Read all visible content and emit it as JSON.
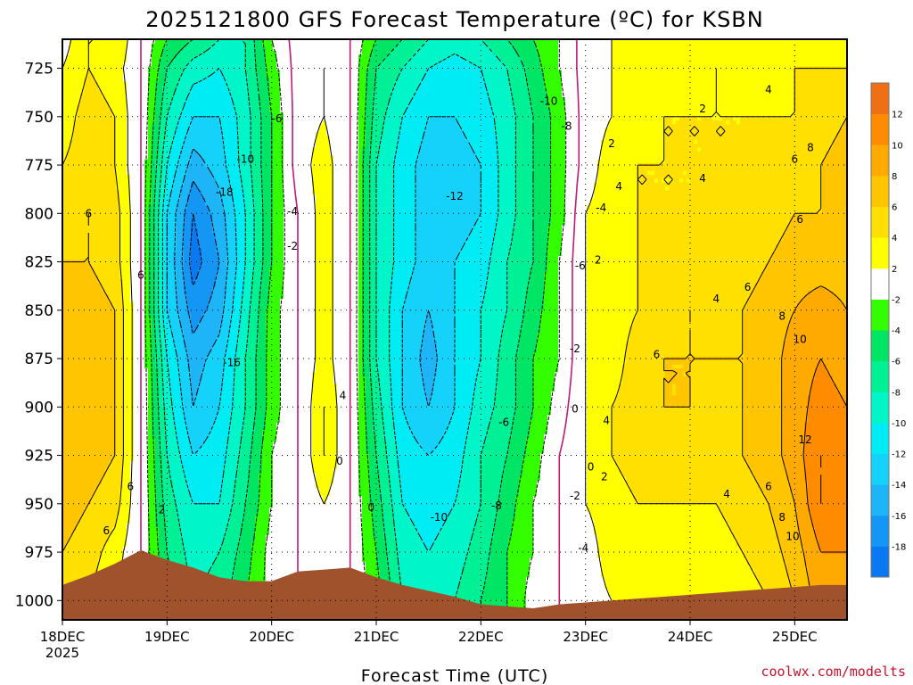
{
  "chart_data": {
    "type": "heatmap",
    "title": "2025121800 GFS Forecast Temperature (ºC) for KSBN",
    "xlabel": "Forecast Time (UTC)",
    "ylabel": "",
    "credit": "coolwx.com/modelts",
    "x_tick_labels": [
      "18DEC",
      "19DEC",
      "20DEC",
      "21DEC",
      "22DEC",
      "23DEC",
      "24DEC",
      "25DEC"
    ],
    "x_year_label": "2025",
    "x_range_days": [
      0,
      7.5
    ],
    "y_axis_unit": "hPa",
    "y_range": [
      710,
      1010
    ],
    "y_ticks": [
      725,
      750,
      775,
      800,
      825,
      850,
      875,
      900,
      925,
      950,
      975,
      1000
    ],
    "colorbar": {
      "boundaries": [
        -20,
        -18,
        -16,
        -14,
        -12,
        -10,
        -8,
        -6,
        -4,
        -2,
        2,
        4,
        6,
        8,
        10,
        12,
        14
      ],
      "labels": [
        "-18",
        "-16",
        "-14",
        "-12",
        "-10",
        "-8",
        "-6",
        "-4",
        "-2",
        "2",
        "4",
        "6",
        "8",
        "10",
        "12"
      ],
      "colors": [
        "#0a78f0",
        "#1496f5",
        "#1eb4f8",
        "#14d2fa",
        "#00ecf5",
        "#00f5c8",
        "#00f096",
        "#00e664",
        "#33ff00",
        "#ffffff",
        "#ffff00",
        "#ffe000",
        "#ffc600",
        "#ffaa00",
        "#ff8c00",
        "#f06e14"
      ]
    },
    "grid": true,
    "x_days": [
      0,
      0.25,
      0.5,
      0.75,
      1.0,
      1.25,
      1.5,
      1.75,
      2.0,
      2.25,
      2.5,
      2.75,
      3.0,
      3.25,
      3.5,
      3.75,
      4.0,
      4.25,
      4.5,
      4.75,
      5.0,
      5.25,
      5.5,
      5.75,
      6.0,
      6.25,
      6.5,
      6.75,
      7.0,
      7.25,
      7.5
    ],
    "pressure_levels": [
      710,
      725,
      750,
      775,
      800,
      825,
      850,
      875,
      900,
      925,
      950,
      975,
      1000,
      1010
    ],
    "surface_pressure": [
      992,
      987,
      981,
      974,
      979,
      983,
      988,
      990,
      990,
      985,
      984,
      983,
      988,
      992,
      995,
      998,
      1002,
      1003,
      1004,
      1002,
      1001,
      1000,
      999,
      998,
      997,
      996,
      995,
      994,
      993,
      992,
      992
    ],
    "temperature": [
      [
        1,
        4,
        4,
        0,
        -4,
        -6,
        -8,
        -8,
        -2,
        1,
        1,
        0,
        -4,
        -6,
        -8,
        -9,
        -8,
        -6,
        -4,
        -2,
        1,
        2,
        3,
        3,
        3,
        3,
        3,
        3,
        3,
        3,
        3
      ],
      [
        2,
        4,
        3,
        0,
        -6,
        -9,
        -10,
        -8,
        -3,
        1,
        2,
        0,
        -6,
        -8,
        -10,
        -11,
        -10,
        -8,
        -5,
        -2,
        1,
        2,
        3,
        3,
        3,
        4,
        3,
        3,
        4,
        4,
        4
      ],
      [
        3,
        5,
        4,
        0,
        -8,
        -12,
        -12,
        -9,
        -4,
        1,
        2,
        0,
        -7,
        -10,
        -12,
        -12,
        -11,
        -9,
        -6,
        -3,
        1,
        2,
        3,
        4,
        4,
        4,
        4,
        4,
        4,
        5,
        6
      ],
      [
        4,
        5,
        4,
        0,
        -10,
        -15,
        -13,
        -9,
        -4,
        1,
        3,
        0,
        -8,
        -11,
        -13,
        -13,
        -12,
        -9,
        -6,
        -3,
        1,
        3,
        4,
        4,
        4,
        4,
        4,
        5,
        5,
        6,
        7
      ],
      [
        5,
        6,
        5,
        0,
        -12,
        -18,
        -15,
        -10,
        -4,
        0,
        3,
        0,
        -8,
        -11,
        -13,
        -13,
        -12,
        -9,
        -6,
        -3,
        2,
        3,
        4,
        4,
        4,
        5,
        5,
        5,
        6,
        6,
        7
      ],
      [
        6,
        6,
        5,
        0,
        -12,
        -19,
        -16,
        -10,
        -4,
        0,
        3,
        0,
        -8,
        -11,
        -13,
        -12,
        -11,
        -8,
        -6,
        -2,
        2,
        3,
        4,
        5,
        5,
        5,
        5,
        6,
        7,
        7,
        7
      ],
      [
        6,
        7,
        6,
        0,
        -12,
        -17,
        -15,
        -9,
        -3,
        0,
        3,
        0,
        -8,
        -12,
        -14,
        -12,
        -10,
        -8,
        -5,
        -2,
        2,
        3,
        4,
        5,
        6,
        5,
        6,
        7,
        8,
        9,
        8
      ],
      [
        7,
        7,
        6,
        0,
        -10,
        -15,
        -13,
        -8,
        -3,
        0,
        3,
        0,
        -8,
        -12,
        -15,
        -12,
        -10,
        -7,
        -4,
        -2,
        2,
        3,
        5,
        6,
        6,
        6,
        6,
        7,
        9,
        10,
        9
      ],
      [
        7,
        7,
        6,
        0,
        -9,
        -14,
        -12,
        -8,
        -3,
        0,
        4,
        0,
        -7,
        -12,
        -14,
        -12,
        -9,
        -7,
        -4,
        -1,
        2,
        4,
        5,
        6,
        6,
        5,
        6,
        7,
        9,
        11,
        10
      ],
      [
        7,
        7,
        6,
        0,
        -8,
        -12,
        -11,
        -7,
        -2,
        0,
        4,
        0,
        -6,
        -11,
        -12,
        -11,
        -8,
        -6,
        -3,
        0,
        2,
        4,
        5,
        5,
        5,
        5,
        6,
        7,
        9,
        12,
        11
      ],
      [
        7,
        6,
        5,
        0,
        -7,
        -10,
        -10,
        -6,
        -2,
        0,
        2,
        0,
        -5,
        -10,
        -11,
        -10,
        -8,
        -5,
        -2,
        0,
        2,
        3,
        4,
        4,
        4,
        4,
        5,
        6,
        8,
        12,
        11
      ],
      [
        6,
        5,
        3,
        0,
        -6,
        -9,
        -8,
        -5,
        -1,
        0,
        1,
        0,
        -4,
        -9,
        -10,
        -9,
        -7,
        -4,
        -2,
        0,
        1,
        3,
        3,
        3,
        3,
        3,
        4,
        5,
        7,
        10,
        10
      ],
      [
        5,
        4,
        2,
        0,
        -5,
        -8,
        -7,
        -4,
        -1,
        0,
        1,
        0,
        -3,
        -8,
        -9,
        -8,
        -6,
        -4,
        -1,
        0,
        1,
        2,
        3,
        3,
        3,
        3,
        3,
        4,
        6,
        9,
        9
      ],
      [
        4,
        3,
        2,
        0,
        -5,
        -7,
        -7,
        -4,
        -1,
        0,
        1,
        0,
        -3,
        -7,
        -8,
        -8,
        -6,
        -4,
        -1,
        0,
        1,
        2,
        2,
        2,
        3,
        3,
        3,
        4,
        5,
        8,
        8
      ]
    ],
    "contour_labels": [
      {
        "text": "6",
        "day": 0.25,
        "p": 800
      },
      {
        "text": "6",
        "day": 0.75,
        "p": 832
      },
      {
        "text": "6",
        "day": 0.65,
        "p": 941
      },
      {
        "text": "6",
        "day": 0.42,
        "p": 964
      },
      {
        "text": "2",
        "day": 0.95,
        "p": 953
      },
      {
        "text": "-6",
        "day": 2.05,
        "p": 751
      },
      {
        "text": "-10",
        "day": 1.75,
        "p": 772
      },
      {
        "text": "-18",
        "day": 1.55,
        "p": 789
      },
      {
        "text": "-16",
        "day": 1.62,
        "p": 877
      },
      {
        "text": "-4",
        "day": 2.2,
        "p": 799
      },
      {
        "text": "-2",
        "day": 2.2,
        "p": 817
      },
      {
        "text": "4",
        "day": 2.68,
        "p": 894
      },
      {
        "text": "0",
        "day": 2.65,
        "p": 928
      },
      {
        "text": "0",
        "day": 2.95,
        "p": 952
      },
      {
        "text": "-12",
        "day": 3.75,
        "p": 791
      },
      {
        "text": "-10",
        "day": 4.65,
        "p": 742
      },
      {
        "text": "-8",
        "day": 4.82,
        "p": 755
      },
      {
        "text": "-4",
        "day": 5.15,
        "p": 797
      },
      {
        "text": "-6",
        "day": 4.95,
        "p": 827
      },
      {
        "text": "-2",
        "day": 4.9,
        "p": 870
      },
      {
        "text": "0",
        "day": 4.9,
        "p": 901
      },
      {
        "text": "-6",
        "day": 4.22,
        "p": 908
      },
      {
        "text": "-8",
        "day": 4.15,
        "p": 951
      },
      {
        "text": "-10",
        "day": 3.6,
        "p": 957
      },
      {
        "text": "-2",
        "day": 4.9,
        "p": 946
      },
      {
        "text": "-4",
        "day": 4.98,
        "p": 973
      },
      {
        "text": "0",
        "day": 5.05,
        "p": 931
      },
      {
        "text": "2",
        "day": 5.18,
        "p": 936
      },
      {
        "text": "2",
        "day": 5.12,
        "p": 824
      },
      {
        "text": "2",
        "day": 5.25,
        "p": 764
      },
      {
        "text": "4",
        "day": 5.32,
        "p": 786
      },
      {
        "text": "4",
        "day": 5.2,
        "p": 907
      },
      {
        "text": "6",
        "day": 5.68,
        "p": 873
      },
      {
        "text": "4",
        "day": 6.12,
        "p": 782
      },
      {
        "text": "4",
        "day": 6.25,
        "p": 844
      },
      {
        "text": "4",
        "day": 6.35,
        "p": 945
      },
      {
        "text": "2",
        "day": 6.12,
        "p": 746
      },
      {
        "text": "4",
        "day": 6.75,
        "p": 736
      },
      {
        "text": "6",
        "day": 6.55,
        "p": 838
      },
      {
        "text": "6",
        "day": 6.75,
        "p": 941
      },
      {
        "text": "8",
        "day": 6.88,
        "p": 853
      },
      {
        "text": "8",
        "day": 6.88,
        "p": 957
      },
      {
        "text": "10",
        "day": 7.05,
        "p": 865
      },
      {
        "text": "10",
        "day": 6.98,
        "p": 967
      },
      {
        "text": "12",
        "day": 7.1,
        "p": 917
      },
      {
        "text": "6",
        "day": 7.05,
        "p": 803
      },
      {
        "text": "6",
        "day": 7.0,
        "p": 772
      },
      {
        "text": "8",
        "day": 7.15,
        "p": 766
      }
    ]
  }
}
